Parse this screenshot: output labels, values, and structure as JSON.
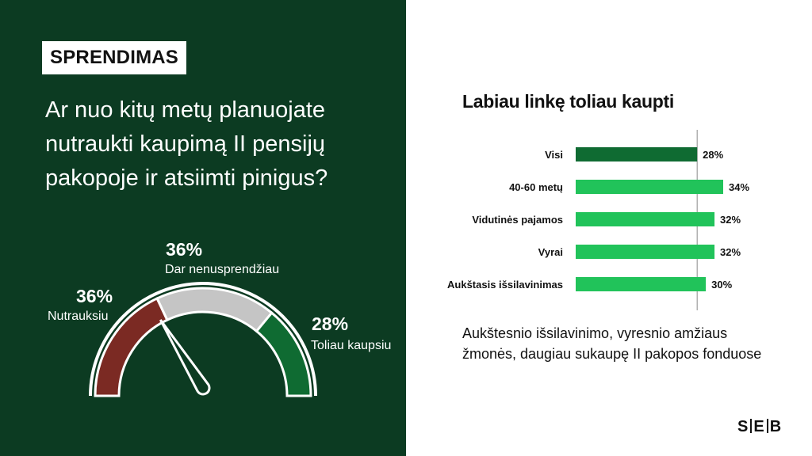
{
  "tag": "SPRENDIMAS",
  "question": "Ar nuo kitų metų planuojate nutraukti kaupimą II pensijų pakopoje ir atsiimti pinigus?",
  "gauge": {
    "segments": [
      {
        "name": "Nutrauksiu",
        "value": 36,
        "pct_label": "36%",
        "color": "#7b2a23"
      },
      {
        "name": "Dar nenusprendžiau",
        "value": 36,
        "pct_label": "36%",
        "color": "#c5c5c5"
      },
      {
        "name": "Toliau kaupsiu",
        "value": 28,
        "pct_label": "28%",
        "color": "#0f6b32"
      }
    ]
  },
  "right_title": "Labiau linkę toliau kaupti",
  "chart_data": {
    "type": "bar",
    "orientation": "horizontal",
    "categories": [
      "Visi",
      "40-60 metų",
      "Vidutinės pajamos",
      "Vyrai",
      "Aukštasis išsilavinimas"
    ],
    "values": [
      28,
      34,
      32,
      32,
      30
    ],
    "value_labels": [
      "28%",
      "34%",
      "32%",
      "32%",
      "30%"
    ],
    "colors": [
      "#0f6b32",
      "#21c35a",
      "#21c35a",
      "#21c35a",
      "#21c35a"
    ],
    "reference_line": 28,
    "xlim": [
      0,
      40
    ],
    "title": "Labiau linkę toliau kaupti"
  },
  "note": "Aukštesnio išsilavinimo, vyresnio amžiaus žmonės, daugiau sukaupę II pakopos fonduose",
  "logo": {
    "left": "S",
    "mid": "E",
    "right": "B"
  }
}
